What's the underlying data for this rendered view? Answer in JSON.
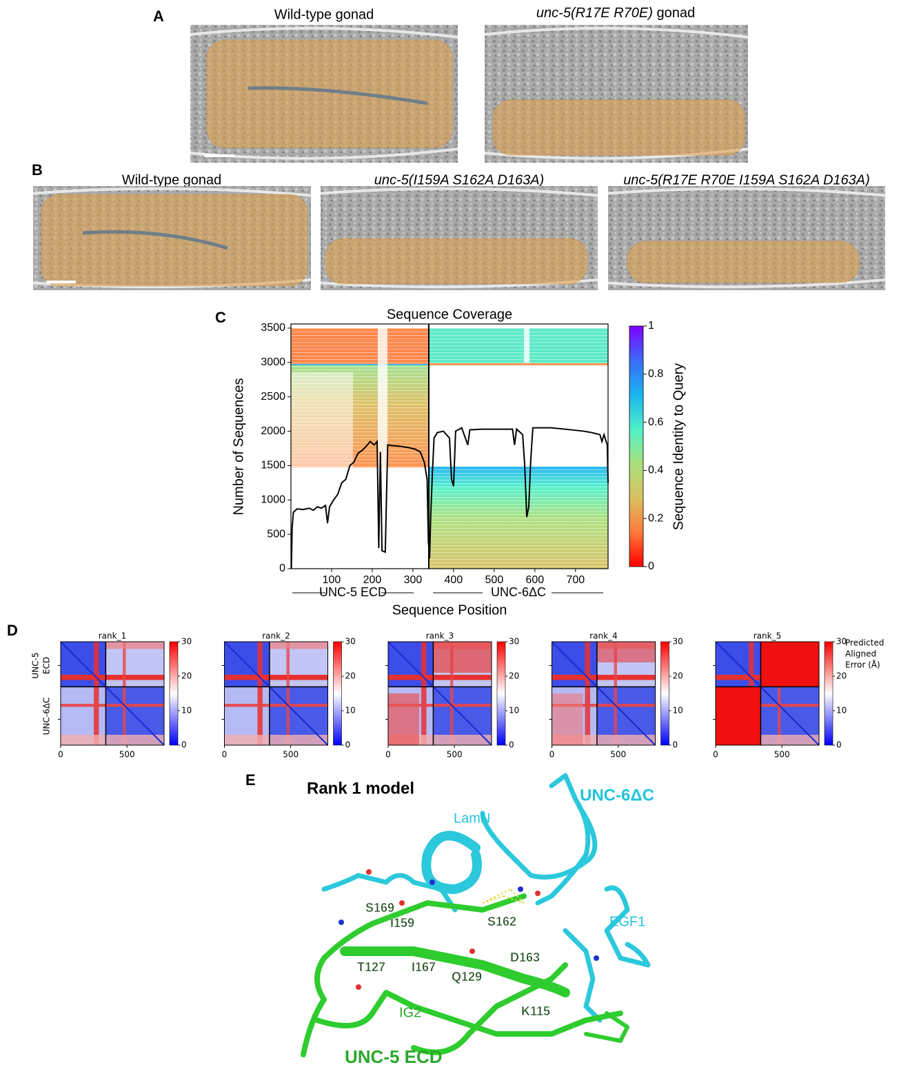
{
  "panel_labels": [
    "A",
    "B",
    "C",
    "D",
    "E"
  ],
  "panel_a": {
    "images": [
      {
        "title": "Wild-type gonad"
      },
      {
        "title_italic": "unc-5(R17E R70E)",
        "title": "gonad"
      }
    ]
  },
  "panel_b": {
    "images": [
      {
        "title": "Wild-type gonad"
      },
      {
        "title_italic": "unc-5(I159A S162A D163A)"
      },
      {
        "title_italic": "unc-5(R17E R70E I159A S162A D163A)"
      }
    ]
  },
  "chart_data": [
    {
      "type": "line",
      "title": "Sequence Coverage",
      "xlabel": "Sequence Position",
      "ylabel": "Number of Sequences",
      "x": [
        1,
        3,
        6,
        15,
        30,
        45,
        55,
        65,
        75,
        85,
        90,
        95,
        105,
        115,
        125,
        135,
        145,
        155,
        165,
        175,
        185,
        195,
        205,
        212,
        216,
        220,
        224,
        232,
        238,
        250,
        270,
        290,
        305,
        318,
        328,
        335,
        338,
        341,
        344,
        348,
        352,
        360,
        375,
        390,
        395,
        400,
        405,
        420,
        435,
        440,
        470,
        520,
        545,
        550,
        555,
        570,
        575,
        580,
        585,
        590,
        595,
        640,
        690,
        720,
        740,
        760,
        765,
        770,
        778,
        780
      ],
      "values": [
        0,
        600,
        820,
        870,
        860,
        880,
        850,
        900,
        880,
        920,
        660,
        900,
        1000,
        1080,
        1250,
        1300,
        1500,
        1550,
        1680,
        1720,
        1780,
        1850,
        1800,
        1850,
        300,
        1700,
        260,
        240,
        1800,
        1790,
        1780,
        1760,
        1740,
        1700,
        1550,
        1300,
        400,
        150,
        800,
        1400,
        1900,
        1980,
        2000,
        1900,
        1300,
        1200,
        2000,
        2050,
        1800,
        2020,
        2030,
        2030,
        2030,
        1800,
        2030,
        1950,
        1500,
        750,
        900,
        1600,
        2050,
        2050,
        2020,
        2000,
        1980,
        1950,
        1850,
        1950,
        1800,
        1250
      ],
      "color": "#000000",
      "xlim": [
        0,
        780
      ],
      "xticks": [
        100,
        200,
        300,
        400,
        500,
        600,
        700
      ],
      "ylim": [
        0,
        3560
      ],
      "yticks": [
        0,
        500,
        1000,
        1500,
        2000,
        2500,
        3000,
        3500
      ],
      "segments": [
        "UNC-5 ECD",
        "UNC-6ΔC"
      ],
      "colorbar": {
        "label": "Sequence Identity to Query",
        "lim": [
          0,
          1
        ],
        "ticks": [
          0,
          0.2,
          0.4,
          0.6,
          0.8,
          1
        ],
        "colors": [
          "#ff0000",
          "#ff7a3a",
          "#d9c060",
          "#a8e07a",
          "#4ff0c8",
          "#1ab4f0",
          "#3a6cf8",
          "#8000ff"
        ]
      }
    },
    {
      "type": "heatmap",
      "title": "rank_1",
      "xlim": [
        0,
        780
      ],
      "xticks": [
        0,
        500
      ],
      "ylabels": [
        [
          "UNC-5",
          "ECD"
        ],
        [
          "UNC-6ΔC"
        ]
      ],
      "colorbar": {
        "lim": [
          0,
          30
        ],
        "ticks": [
          0,
          10,
          20,
          30
        ],
        "colors": [
          "#0000ff",
          "#ffffff",
          "#ff0000"
        ]
      }
    },
    {
      "type": "heatmap",
      "title": "rank_2",
      "xlim": [
        0,
        780
      ],
      "xticks": [
        0,
        500
      ],
      "colorbar": {
        "lim": [
          0,
          30
        ],
        "ticks": [
          0,
          10,
          20,
          30
        ],
        "colors": [
          "#0000ff",
          "#ffffff",
          "#ff0000"
        ]
      }
    },
    {
      "type": "heatmap",
      "title": "rank_3",
      "xlim": [
        0,
        780
      ],
      "xticks": [
        0,
        500
      ],
      "colorbar": {
        "lim": [
          0,
          30
        ],
        "ticks": [
          0,
          10,
          20,
          30
        ],
        "colors": [
          "#0000ff",
          "#ffffff",
          "#ff0000"
        ]
      }
    },
    {
      "type": "heatmap",
      "title": "rank_4",
      "xlim": [
        0,
        780
      ],
      "xticks": [
        0,
        500
      ],
      "colorbar": {
        "lim": [
          0,
          30
        ],
        "ticks": [
          0,
          10,
          20,
          30
        ],
        "colors": [
          "#0000ff",
          "#ffffff",
          "#ff0000"
        ]
      }
    },
    {
      "type": "heatmap",
      "title": "rank_5",
      "xlim": [
        0,
        780
      ],
      "xticks": [
        0,
        500
      ],
      "colorbar": {
        "label": [
          "Predicted",
          "Aligned",
          "Error (Å)"
        ],
        "lim": [
          0,
          30
        ],
        "ticks": [
          0,
          10,
          20,
          30
        ],
        "colors": [
          "#0000ff",
          "#ffffff",
          "#ff0000"
        ]
      }
    }
  ],
  "panel_e": {
    "title": "Rank 1 model",
    "partner": "UNC-6ΔC",
    "chain": "UNC-5 ECD",
    "domains": [
      "LamN",
      "EGF1",
      "IG2"
    ],
    "residues": [
      "S169",
      "I159",
      "S162",
      "D163",
      "T127",
      "I167",
      "Q129",
      "K115"
    ]
  }
}
